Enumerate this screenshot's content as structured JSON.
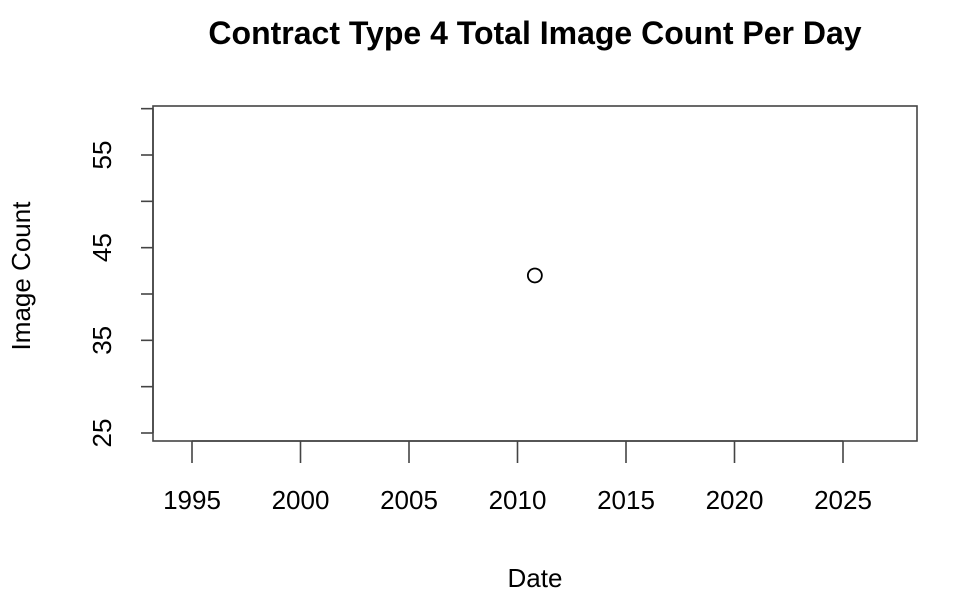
{
  "chart_data": {
    "type": "scatter",
    "title": "Contract Type 4 Total Image Count Per Day",
    "xlabel": "Date",
    "ylabel": "Image Count",
    "x_ticks": [
      1995,
      2000,
      2005,
      2010,
      2015,
      2020,
      2025
    ],
    "y_ticks": [
      25,
      35,
      45,
      55
    ],
    "y_minor_ticks": [
      30,
      40,
      50,
      60
    ],
    "xlim": [
      1993.2,
      2028.4
    ],
    "ylim": [
      25,
      60
    ],
    "grid": false,
    "points": [
      {
        "x": 2010.8,
        "y": 42
      }
    ]
  }
}
